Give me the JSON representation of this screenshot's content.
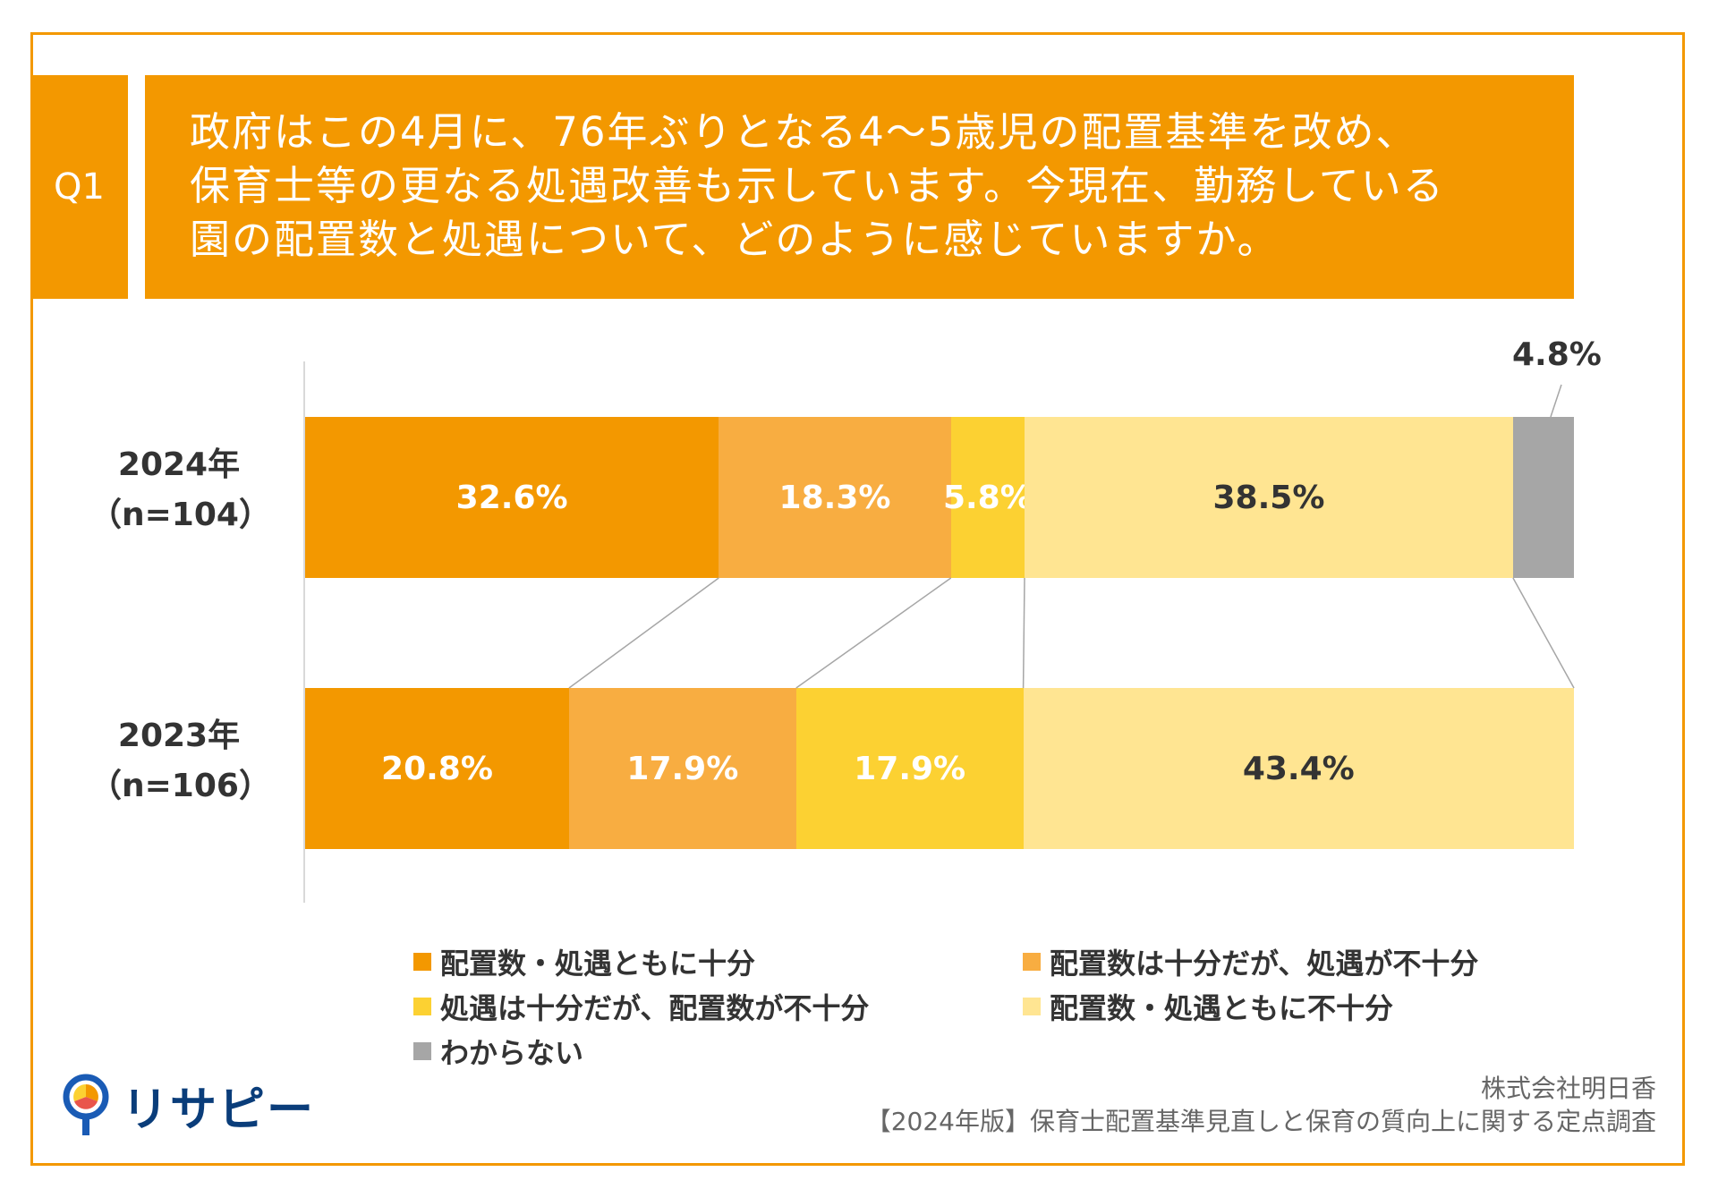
{
  "question": {
    "tag": "Q1",
    "lines": [
      "政府はこの4月に、76年ぶりとなる4〜5歳児の配置基準を改め、",
      "保育士等の更なる処遇改善も示しています。今現在、勤務している",
      "園の配置数と処遇について、どのように感じていますか。"
    ]
  },
  "chart_data": {
    "type": "bar",
    "orientation": "horizontal",
    "stacked": true,
    "percent": true,
    "categories": [
      {
        "year": "2024年",
        "n": "（n=104）"
      },
      {
        "year": "2023年",
        "n": "（n=106）"
      }
    ],
    "series": [
      {
        "name": "配置数・処遇ともに十分",
        "color": "#F39800",
        "values": [
          32.6,
          20.8
        ],
        "labels": [
          "32.6%",
          "20.8%"
        ]
      },
      {
        "name": "配置数は十分だが、処遇が不十分",
        "color": "#F8AD41",
        "values": [
          18.3,
          17.9
        ],
        "labels": [
          "18.3%",
          "17.9%"
        ]
      },
      {
        "name": "処遇は十分だが、配置数が不十分",
        "color": "#FCD132",
        "values": [
          5.8,
          17.9
        ],
        "labels": [
          "5.8%",
          "17.9%"
        ]
      },
      {
        "name": "配置数・処遇ともに不十分",
        "color": "#FFE592",
        "values": [
          38.5,
          43.4
        ],
        "labels": [
          "38.5%",
          "43.4%"
        ]
      },
      {
        "name": "わからない",
        "color": "#A6A6A6",
        "values": [
          4.8,
          0
        ],
        "labels": [
          "4.8%",
          ""
        ]
      }
    ],
    "xlim": [
      0,
      100
    ],
    "legend_position": "bottom",
    "grid": false
  },
  "brand": {
    "name": "リサピー"
  },
  "footer": {
    "company": "株式会社明日香",
    "survey": "【2024年版】保育士配置基準見直しと保育の質向上に関する定点調査"
  }
}
